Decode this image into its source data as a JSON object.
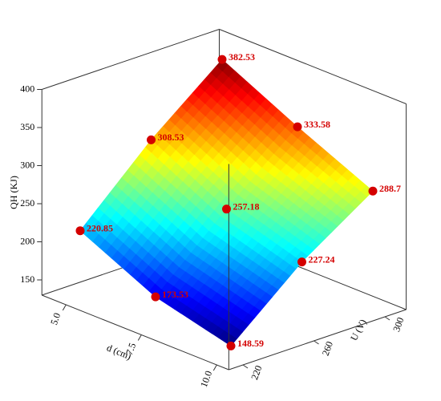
{
  "chart_data": {
    "type": "surface3d",
    "x_label": "d (cm)",
    "y_label": "U (V)",
    "z_label": "QH (KJ)",
    "x": [
      5,
      5,
      5,
      7.5,
      7.5,
      7.5,
      10,
      10,
      10
    ],
    "y": [
      220,
      260,
      300,
      220,
      260,
      300,
      220,
      260,
      300
    ],
    "values": [
      220.85,
      308.53,
      382.53,
      173.53,
      257.18,
      333.58,
      148.59,
      227.24,
      288.7
    ],
    "xlim": [
      4.2,
      10.4
    ],
    "ylim": [
      212,
      312
    ],
    "zlim": [
      130,
      400
    ],
    "xticks": [
      {
        "value": 5,
        "label": "5.0"
      },
      {
        "value": 7.5,
        "label": "7.5"
      },
      {
        "value": 10,
        "label": "10.0"
      }
    ],
    "yticks": [
      220,
      260,
      300
    ],
    "zticks": [
      150,
      200,
      250,
      300,
      350,
      400
    ],
    "colormap": "jet",
    "point_color": "#d40000",
    "label_color": "#d40000"
  }
}
